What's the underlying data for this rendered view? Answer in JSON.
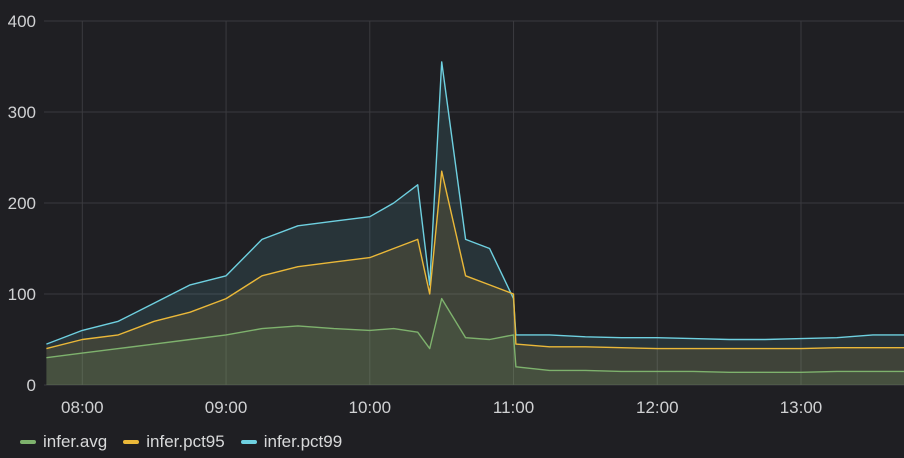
{
  "chart_data": {
    "type": "area",
    "y_ticks": [
      0,
      100,
      200,
      300,
      400
    ],
    "x_ticks": [
      "08:00",
      "09:00",
      "10:00",
      "11:00",
      "12:00",
      "13:00"
    ],
    "xlim": [
      "07:44",
      "13:43"
    ],
    "ylim": [
      0,
      400
    ],
    "grid": true,
    "legend_position": "bottom-left",
    "series": [
      {
        "name": "infer.avg",
        "color": "#7eb26d",
        "x": [
          "07:45",
          "08:00",
          "08:15",
          "08:30",
          "08:45",
          "09:00",
          "09:15",
          "09:30",
          "09:45",
          "10:00",
          "10:10",
          "10:20",
          "10:25",
          "10:30",
          "10:40",
          "10:50",
          "11:00",
          "11:01",
          "11:15",
          "11:30",
          "11:45",
          "12:00",
          "12:15",
          "12:30",
          "12:45",
          "13:00",
          "13:15",
          "13:30",
          "13:43"
        ],
        "values": [
          30,
          35,
          40,
          45,
          50,
          55,
          62,
          65,
          62,
          60,
          62,
          58,
          40,
          95,
          52,
          50,
          55,
          20,
          16,
          16,
          15,
          15,
          15,
          14,
          14,
          14,
          15,
          15,
          15
        ]
      },
      {
        "name": "infer.pct95",
        "color": "#eab839",
        "x": [
          "07:45",
          "08:00",
          "08:15",
          "08:30",
          "08:45",
          "09:00",
          "09:15",
          "09:30",
          "09:45",
          "10:00",
          "10:10",
          "10:20",
          "10:25",
          "10:30",
          "10:40",
          "10:50",
          "11:00",
          "11:01",
          "11:15",
          "11:30",
          "11:45",
          "12:00",
          "12:15",
          "12:30",
          "12:45",
          "13:00",
          "13:15",
          "13:30",
          "13:43"
        ],
        "values": [
          40,
          50,
          55,
          70,
          80,
          95,
          120,
          130,
          135,
          140,
          150,
          160,
          100,
          235,
          120,
          110,
          100,
          45,
          42,
          42,
          41,
          40,
          40,
          40,
          40,
          40,
          41,
          41,
          41
        ]
      },
      {
        "name": "infer.pct99",
        "color": "#6ed0e0",
        "x": [
          "07:45",
          "08:00",
          "08:15",
          "08:30",
          "08:45",
          "09:00",
          "09:15",
          "09:30",
          "09:45",
          "10:00",
          "10:10",
          "10:20",
          "10:25",
          "10:30",
          "10:40",
          "10:50",
          "11:00",
          "11:01",
          "11:15",
          "11:30",
          "11:45",
          "12:00",
          "12:15",
          "12:30",
          "12:45",
          "13:00",
          "13:15",
          "13:30",
          "13:43"
        ],
        "values": [
          45,
          60,
          70,
          90,
          110,
          120,
          160,
          175,
          180,
          185,
          200,
          220,
          110,
          355,
          160,
          150,
          95,
          55,
          55,
          53,
          52,
          52,
          51,
          50,
          50,
          51,
          52,
          55,
          55
        ]
      }
    ]
  }
}
